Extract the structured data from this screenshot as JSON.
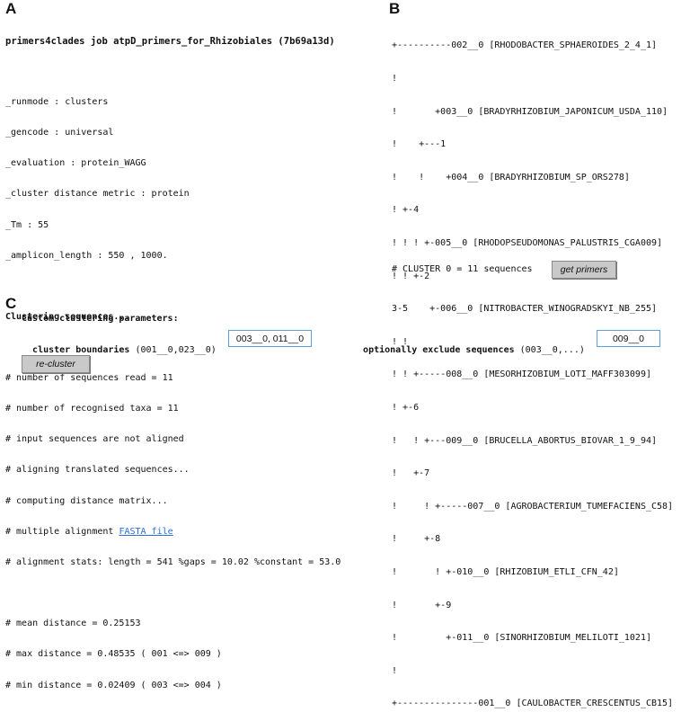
{
  "panel_a": {
    "label": "A",
    "title": "primers4clades job atpD_primers_for_Rhizobiales (7b69a13d)",
    "params": [
      "_runmode : clusters",
      "_gencode : universal",
      "_evaluation : protein_WAGG",
      "_cluster distance metric : protein",
      "_Tm : 55",
      "_amplicon_length : 550 , 1000."
    ],
    "clustering_heading": "Clustering sequences...",
    "log_lines": [
      "# number of sequences read = 11",
      "# number of recognised taxa = 11",
      "# input sequences are not aligned",
      "# aligning translated sequences...",
      "# computing distance matrix..."
    ],
    "multiple_alignment_prefix": "# multiple alignment ",
    "fasta_link": "FASTA file",
    "stats_line": "# alignment stats: length = 541 %gaps = 10.02 %constant = 53.0",
    "distance_lines": [
      "# mean distance = 0.25153",
      "# max distance = 0.48535 ( 001 <=> 009 )",
      "# min distance = 0.02409 ( 003 <=> 004 )"
    ]
  },
  "panel_b": {
    "label": "B",
    "tree_lines": [
      "+----------002__0 [RHODOBACTER_SPHAEROIDES_2_4_1]",
      "!",
      "!       +003__0 [BRADYRHIZOBIUM_JAPONICUM_USDA_110]",
      "!    +---1",
      "!    !    +004__0 [BRADYRHIZOBIUM_SP_ORS278]",
      "! +-4",
      "! ! ! +-005__0 [RHODOPSEUDOMONAS_PALUSTRIS_CGA009]",
      "! ! +-2",
      "3-5    +-006__0 [NITROBACTER_WINOGRADSKYI_NB_255]",
      "! !",
      "! ! +-----008__0 [MESORHIZOBIUM_LOTI_MAFF303099]",
      "! +-6",
      "!   ! +---009__0 [BRUCELLA_ABORTUS_BIOVAR_1_9_94]",
      "!   +-7",
      "!     ! +-----007__0 [AGROBACTERIUM_TUMEFACIENS_C58]",
      "!     +-8",
      "!       ! +-010__0 [RHIZOBIUM_ETLI_CFN_42]",
      "!       +-9",
      "!         +-011__0 [SINORHIZOBIUM_MELILOTI_1021]",
      "!",
      "+---------------001__0 [CAULOBACTER_CRESCENTUS_CB15]"
    ],
    "cluster_summary": "# CLUSTER 0 = 11 sequences",
    "get_primers_label": "get primers"
  },
  "panel_c": {
    "label": "C",
    "heading": "Custom clustering parameters:",
    "boundaries_label": "cluster boundaries",
    "boundaries_hint": " (001__0,023__0)",
    "boundaries_value": "003__0, 011__0",
    "exclude_label": "optionally exclude sequences",
    "exclude_hint": " (003__0,...)",
    "exclude_value": "009__0",
    "recluster_label": "re-cluster"
  },
  "colors": {
    "link": "#2b6ed8",
    "input_border": "#5aa2d8",
    "button_bg": "#c9c9c9"
  }
}
